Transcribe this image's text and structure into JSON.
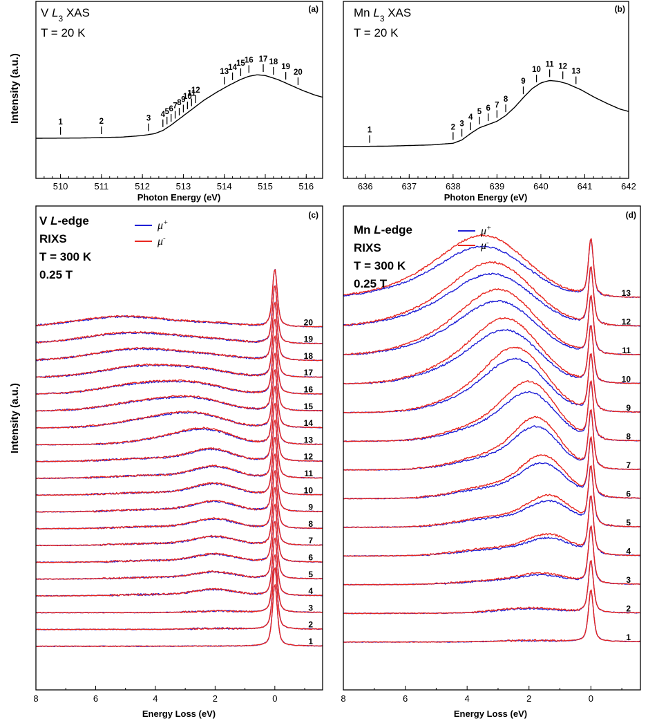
{
  "colors": {
    "mu_plus": "#1f1fd6",
    "mu_minus": "#e8261f",
    "xas": "#000000"
  },
  "y_axis_labels": {
    "top": "Intensity (a.u.)",
    "bottom": "Intensity (a.u.)"
  },
  "panels": {
    "a": {
      "tag": "(a)",
      "line1_prefix": "V ",
      "line1_L": "L",
      "line1_sub": "3",
      "line1_suffix": " XAS",
      "line2": "T = 20 K",
      "xlabel": "Photon Energy (eV)"
    },
    "b": {
      "tag": "(b)",
      "line1_prefix": "Mn ",
      "line1_L": "L",
      "line1_sub": "3",
      "line1_suffix": " XAS",
      "line2": "T = 20 K",
      "xlabel": "Photon Energy (eV)"
    },
    "c": {
      "tag": "(c)",
      "line1_prefix": "V ",
      "line1_L": "L",
      "line1_suffix": "-edge",
      "line2": "RIXS",
      "line3": "T =  300 K",
      "line4": "0.25 T",
      "xlabel": "Energy Loss (eV)"
    },
    "d": {
      "tag": "(d)",
      "line1_prefix": "Mn ",
      "line1_L": "L",
      "line1_suffix": "-edge",
      "line2": "RIXS",
      "line3": "T =  300 K",
      "line4": "0.25 T",
      "xlabel": "Energy Loss (eV)"
    }
  },
  "legend": {
    "mu": "μ",
    "plus": "+",
    "minus": "-"
  },
  "chart_data": [
    {
      "panel": "a",
      "type": "line",
      "title": "V L3 XAS",
      "xlabel": "Photon Energy (eV)",
      "ylabel": "Intensity (a.u.)",
      "xlim": [
        509.4,
        516.4
      ],
      "ylim": [
        0,
        1
      ],
      "xticks": [
        "510",
        "511",
        "512",
        "513",
        "514",
        "515",
        "516"
      ],
      "curve": {
        "x": [
          509.4,
          510.5,
          511.5,
          512.0,
          512.3,
          512.5,
          512.7,
          512.9,
          513.1,
          513.3,
          513.5,
          513.8,
          514.1,
          514.4,
          514.6,
          514.8,
          515.0,
          515.3,
          515.6,
          515.9,
          516.2,
          516.4
        ],
        "y": [
          0.0,
          0.003,
          0.015,
          0.035,
          0.06,
          0.1,
          0.17,
          0.25,
          0.33,
          0.41,
          0.49,
          0.59,
          0.68,
          0.76,
          0.8,
          0.82,
          0.81,
          0.76,
          0.69,
          0.62,
          0.56,
          0.53
        ]
      },
      "markers": [
        {
          "label": "1",
          "x": 510.0
        },
        {
          "label": "2",
          "x": 511.0
        },
        {
          "label": "3",
          "x": 512.15
        },
        {
          "label": "4",
          "x": 512.5
        },
        {
          "label": "5",
          "x": 512.6
        },
        {
          "label": "6",
          "x": 512.7
        },
        {
          "label": "7",
          "x": 512.8
        },
        {
          "label": "8",
          "x": 512.9
        },
        {
          "label": "9",
          "x": 513.0
        },
        {
          "label": "10",
          "x": 513.1
        },
        {
          "label": "11",
          "x": 513.2
        },
        {
          "label": "12",
          "x": 513.3
        },
        {
          "label": "13",
          "x": 514.0
        },
        {
          "label": "14",
          "x": 514.2
        },
        {
          "label": "15",
          "x": 514.4
        },
        {
          "label": "16",
          "x": 514.6
        },
        {
          "label": "17",
          "x": 514.95
        },
        {
          "label": "18",
          "x": 515.2
        },
        {
          "label": "19",
          "x": 515.5
        },
        {
          "label": "20",
          "x": 515.8
        }
      ]
    },
    {
      "panel": "b",
      "type": "line",
      "title": "Mn L3 XAS",
      "xlabel": "Photon Energy (eV)",
      "ylabel": "Intensity (a.u.)",
      "xlim": [
        635.5,
        642.0
      ],
      "ylim": [
        0,
        1
      ],
      "xticks": [
        "636",
        "637",
        "638",
        "639",
        "640",
        "641",
        "642"
      ],
      "curve": {
        "x": [
          635.5,
          636.5,
          637.5,
          638.0,
          638.2,
          638.4,
          638.6,
          638.8,
          639.0,
          639.2,
          639.4,
          639.6,
          639.8,
          640.0,
          640.2,
          640.4,
          640.6,
          640.9,
          641.2,
          641.5,
          641.8,
          642.0
        ],
        "y": [
          0.0,
          0.005,
          0.02,
          0.04,
          0.08,
          0.16,
          0.23,
          0.27,
          0.31,
          0.38,
          0.48,
          0.6,
          0.71,
          0.78,
          0.81,
          0.8,
          0.77,
          0.7,
          0.61,
          0.53,
          0.46,
          0.43
        ]
      },
      "markers": [
        {
          "label": "1",
          "x": 636.1
        },
        {
          "label": "2",
          "x": 638.0
        },
        {
          "label": "3",
          "x": 638.2
        },
        {
          "label": "4",
          "x": 638.4
        },
        {
          "label": "5",
          "x": 638.6
        },
        {
          "label": "6",
          "x": 638.8
        },
        {
          "label": "7",
          "x": 639.0
        },
        {
          "label": "8",
          "x": 639.2
        },
        {
          "label": "9",
          "x": 639.6
        },
        {
          "label": "10",
          "x": 639.9
        },
        {
          "label": "11",
          "x": 640.2
        },
        {
          "label": "12",
          "x": 640.5
        },
        {
          "label": "13",
          "x": 640.8
        }
      ]
    },
    {
      "panel": "c",
      "type": "line",
      "title": "V L-edge RIXS",
      "xlabel": "Energy Loss (eV)",
      "ylabel": "Intensity (a.u.)",
      "xlim": [
        8,
        -1.6
      ],
      "xticks": [
        "8",
        "6",
        "4",
        "2",
        "0"
      ],
      "series_names": [
        "μ+",
        "μ-"
      ],
      "spectra": [
        {
          "label": "1",
          "elastic": 0.85,
          "bands": []
        },
        {
          "label": "2",
          "elastic": 0.85,
          "bands": [
            [
              2.0,
              0.8,
              0.06
            ]
          ]
        },
        {
          "label": "3",
          "elastic": 0.8,
          "bands": [
            [
              2.0,
              0.8,
              0.1
            ]
          ]
        },
        {
          "label": "4",
          "elastic": 0.8,
          "bands": [
            [
              2.0,
              0.7,
              0.45
            ],
            [
              4.0,
              1.2,
              0.1
            ]
          ]
        },
        {
          "label": "5",
          "elastic": 0.8,
          "bands": [
            [
              2.0,
              0.7,
              0.5
            ],
            [
              4.0,
              1.2,
              0.12
            ]
          ]
        },
        {
          "label": "6",
          "elastic": 0.8,
          "bands": [
            [
              2.0,
              0.7,
              0.58
            ],
            [
              4.0,
              1.2,
              0.12
            ]
          ]
        },
        {
          "label": "7",
          "elastic": 0.8,
          "bands": [
            [
              2.0,
              0.7,
              0.64
            ],
            [
              4.0,
              1.2,
              0.14
            ]
          ]
        },
        {
          "label": "8",
          "elastic": 0.8,
          "bands": [
            [
              2.0,
              0.7,
              0.7
            ],
            [
              4.0,
              1.2,
              0.15
            ]
          ]
        },
        {
          "label": "9",
          "elastic": 0.8,
          "bands": [
            [
              2.0,
              0.7,
              0.75
            ],
            [
              4.0,
              1.2,
              0.18
            ]
          ]
        },
        {
          "label": "10",
          "elastic": 0.8,
          "bands": [
            [
              2.0,
              0.7,
              0.8
            ],
            [
              4.0,
              1.3,
              0.2
            ]
          ]
        },
        {
          "label": "11",
          "elastic": 0.8,
          "bands": [
            [
              2.0,
              0.7,
              0.83
            ],
            [
              4.0,
              1.3,
              0.22
            ]
          ]
        },
        {
          "label": "12",
          "elastic": 0.8,
          "bands": [
            [
              2.1,
              0.7,
              0.85
            ],
            [
              4.0,
              1.3,
              0.25
            ]
          ]
        },
        {
          "label": "13",
          "elastic": 0.8,
          "bands": [
            [
              2.2,
              0.8,
              0.75
            ],
            [
              3.2,
              1.2,
              0.6
            ]
          ]
        },
        {
          "label": "14",
          "elastic": 0.8,
          "bands": [
            [
              2.5,
              0.9,
              0.65
            ],
            [
              3.8,
              1.3,
              0.75
            ]
          ]
        },
        {
          "label": "15",
          "elastic": 0.8,
          "bands": [
            [
              2.5,
              0.9,
              0.55
            ],
            [
              4.0,
              1.4,
              0.8
            ]
          ]
        },
        {
          "label": "16",
          "elastic": 0.8,
          "bands": [
            [
              2.5,
              0.9,
              0.45
            ],
            [
              4.2,
              1.4,
              0.85
            ]
          ]
        },
        {
          "label": "17",
          "elastic": 0.8,
          "bands": [
            [
              2.3,
              0.9,
              0.35
            ],
            [
              4.3,
              1.4,
              0.9
            ]
          ]
        },
        {
          "label": "18",
          "elastic": 0.8,
          "bands": [
            [
              2.0,
              0.9,
              0.25
            ],
            [
              4.5,
              1.5,
              0.9
            ]
          ]
        },
        {
          "label": "19",
          "elastic": 0.8,
          "bands": [
            [
              2.0,
              0.9,
              0.2
            ],
            [
              4.7,
              1.6,
              0.85
            ]
          ]
        },
        {
          "label": "20",
          "elastic": 0.8,
          "bands": [
            [
              1.9,
              0.9,
              0.2
            ],
            [
              5.0,
              1.6,
              0.8
            ]
          ]
        }
      ]
    },
    {
      "panel": "d",
      "type": "line",
      "title": "Mn L-edge RIXS",
      "xlabel": "Energy Loss (eV)",
      "ylabel": "Intensity (a.u.)",
      "xlim": [
        8,
        -1.6
      ],
      "xticks": [
        "8",
        "6",
        "4",
        "2",
        "0"
      ],
      "series_names": [
        "μ+",
        "μ-"
      ],
      "spectra": [
        {
          "label": "1",
          "elastic": 0.5,
          "bands": [
            [
              2.0,
              1.0,
              0.05
            ]
          ]
        },
        {
          "label": "2",
          "elastic": 0.5,
          "bands": [
            [
              2.0,
              1.0,
              0.2
            ]
          ]
        },
        {
          "label": "3",
          "elastic": 0.55,
          "bands": [
            [
              1.5,
              0.8,
              0.35
            ],
            [
              3.0,
              1.2,
              0.15
            ]
          ]
        },
        {
          "label": "4",
          "elastic": 0.55,
          "bands": [
            [
              1.3,
              0.7,
              0.7
            ],
            [
              3.0,
              1.2,
              0.3
            ]
          ]
        },
        {
          "label": "5",
          "elastic": 0.55,
          "bands": [
            [
              1.3,
              0.7,
              1.05
            ],
            [
              3.0,
              1.2,
              0.4
            ]
          ]
        },
        {
          "label": "6",
          "elastic": 0.55,
          "bands": [
            [
              1.5,
              0.7,
              1.4
            ],
            [
              3.0,
              1.2,
              0.5
            ]
          ]
        },
        {
          "label": "7",
          "elastic": 0.55,
          "bands": [
            [
              1.7,
              0.7,
              1.65
            ],
            [
              3.0,
              1.2,
              0.6
            ]
          ]
        },
        {
          "label": "8",
          "elastic": 0.55,
          "bands": [
            [
              1.9,
              0.8,
              1.85
            ],
            [
              3.2,
              1.2,
              0.7
            ]
          ]
        },
        {
          "label": "9",
          "elastic": 0.55,
          "bands": [
            [
              2.3,
              0.9,
              1.95
            ],
            [
              3.5,
              1.2,
              0.8
            ]
          ]
        },
        {
          "label": "10",
          "elastic": 0.55,
          "bands": [
            [
              2.6,
              1.0,
              2.0
            ],
            [
              4.0,
              1.3,
              0.8
            ]
          ]
        },
        {
          "label": "11",
          "elastic": 0.55,
          "bands": [
            [
              2.8,
              1.1,
              2.0
            ],
            [
              4.3,
              1.4,
              0.8
            ]
          ]
        },
        {
          "label": "12",
          "elastic": 0.55,
          "bands": [
            [
              3.0,
              1.2,
              2.0
            ],
            [
              4.6,
              1.5,
              0.7
            ]
          ]
        },
        {
          "label": "13",
          "elastic": 0.55,
          "bands": [
            [
              3.3,
              1.3,
              2.0
            ],
            [
              5.0,
              1.6,
              0.6
            ]
          ]
        }
      ]
    }
  ]
}
